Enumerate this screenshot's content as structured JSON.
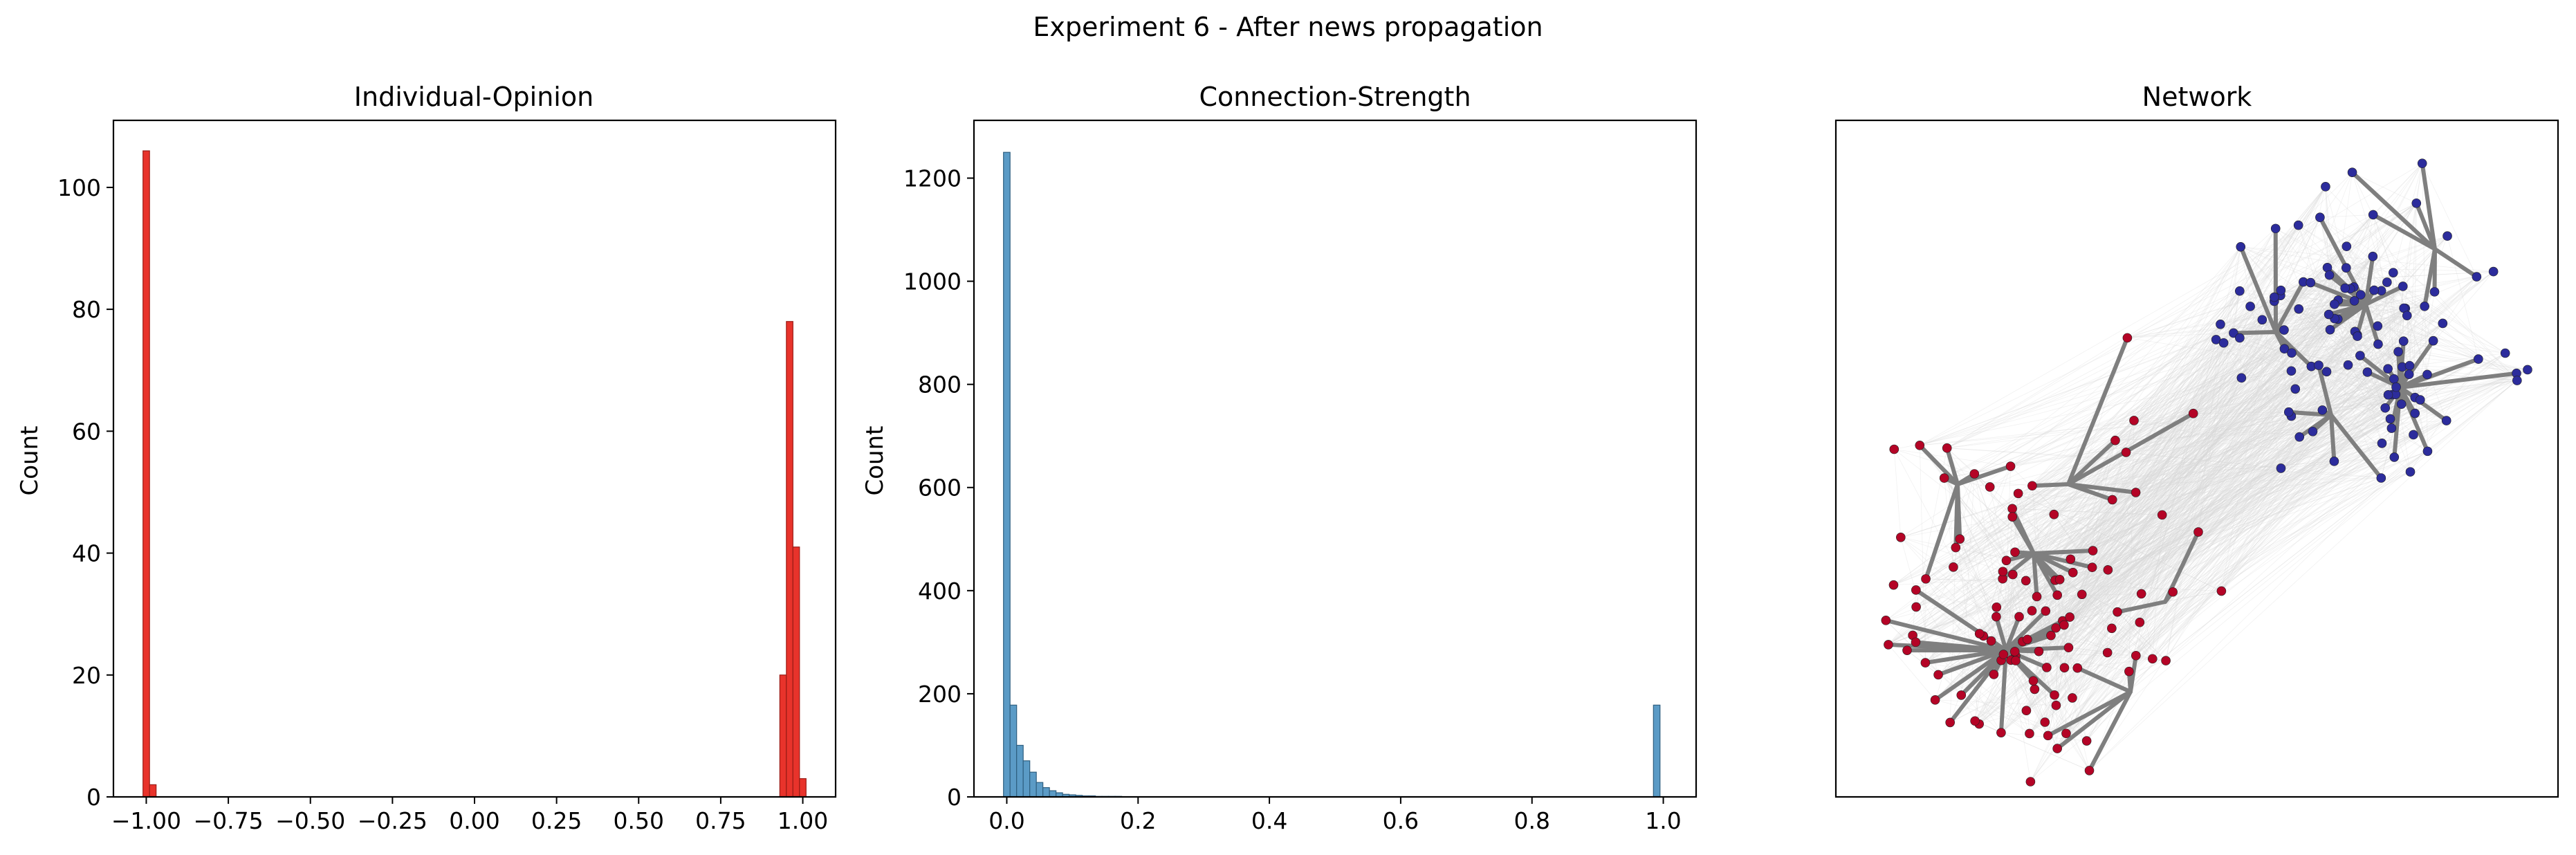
{
  "figure": {
    "suptitle": "Experiment 6 - After news propagation"
  },
  "colors": {
    "opinion_bar": "#e8332b",
    "opinion_edge": "#9a1d17",
    "strength_bar": "#5b9bc6",
    "strength_edge": "#2f5f80",
    "node_red": "#b40426",
    "node_blue": "#2c2c9c",
    "edge_strong": "#7f7f7f",
    "edge_weak": "#d6d6d6"
  },
  "chart_data": [
    {
      "type": "bar",
      "title": "Individual-Opinion",
      "xlabel": "",
      "ylabel": "Count",
      "xlim": [
        -1.1,
        1.1
      ],
      "ylim": [
        0,
        111
      ],
      "xticks": [
        "-1.00",
        "-0.75",
        "-0.50",
        "-0.25",
        "0.00",
        "0.25",
        "0.50",
        "0.75",
        "1.00"
      ],
      "yticks": [
        "0",
        "20",
        "40",
        "60",
        "80",
        "100"
      ],
      "bin_width": 0.02,
      "bins": [
        {
          "x": -1.0,
          "count": 106
        },
        {
          "x": -0.98,
          "count": 2
        },
        {
          "x": 0.94,
          "count": 20
        },
        {
          "x": 0.96,
          "count": 78
        },
        {
          "x": 0.98,
          "count": 41
        },
        {
          "x": 1.0,
          "count": 3
        }
      ]
    },
    {
      "type": "bar",
      "title": "Connection-Strength",
      "xlabel": "",
      "ylabel": "Count",
      "xlim": [
        -0.05,
        1.05
      ],
      "ylim": [
        0,
        1312
      ],
      "xticks": [
        "0.0",
        "0.2",
        "0.4",
        "0.6",
        "0.8",
        "1.0"
      ],
      "yticks": [
        "0",
        "200",
        "400",
        "600",
        "800",
        "1000",
        "1200"
      ],
      "bin_width": 0.01,
      "bins": [
        {
          "x": 0.0,
          "count": 1250
        },
        {
          "x": 0.01,
          "count": 178
        },
        {
          "x": 0.02,
          "count": 100
        },
        {
          "x": 0.03,
          "count": 70
        },
        {
          "x": 0.04,
          "count": 48
        },
        {
          "x": 0.05,
          "count": 28
        },
        {
          "x": 0.06,
          "count": 18
        },
        {
          "x": 0.07,
          "count": 12
        },
        {
          "x": 0.08,
          "count": 8
        },
        {
          "x": 0.09,
          "count": 5
        },
        {
          "x": 0.1,
          "count": 4
        },
        {
          "x": 0.11,
          "count": 3
        },
        {
          "x": 0.12,
          "count": 2
        },
        {
          "x": 0.13,
          "count": 2
        },
        {
          "x": 0.14,
          "count": 1
        },
        {
          "x": 0.15,
          "count": 1
        },
        {
          "x": 0.16,
          "count": 1
        },
        {
          "x": 0.17,
          "count": 1
        },
        {
          "x": 0.99,
          "count": 178
        }
      ]
    },
    {
      "type": "network",
      "title": "Network",
      "groups": [
        {
          "color": "node_red",
          "count": 110
        },
        {
          "color": "node_blue",
          "count": 110
        }
      ]
    }
  ]
}
